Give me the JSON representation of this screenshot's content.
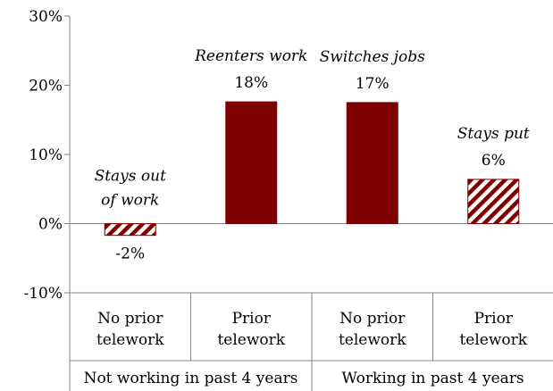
{
  "chart_data": {
    "type": "bar",
    "ylim": [
      -10,
      30
    ],
    "yticks": [
      "30%",
      "20%",
      "10%",
      "0%",
      "-10%"
    ],
    "ytick_values": [
      30,
      20,
      10,
      0,
      -10
    ],
    "categories": [
      "No prior telework",
      "Prior telework",
      "No prior telework",
      "Prior telework"
    ],
    "category_lines": [
      [
        "No prior",
        "telework"
      ],
      [
        "Prior",
        "telework"
      ],
      [
        "No prior",
        "telework"
      ],
      [
        "Prior",
        "telework"
      ]
    ],
    "groups": [
      "Not working in past 4 years",
      "Working in past 4 years"
    ],
    "values": [
      -1.7,
      17.6,
      17.5,
      6.4
    ],
    "value_labels": [
      "-2%",
      "18%",
      "17%",
      "6%"
    ],
    "annotations": [
      [
        "Stays out",
        "of work"
      ],
      [
        "Reenters work"
      ],
      [
        "Switches jobs"
      ],
      [
        "Stays put"
      ]
    ],
    "fills": [
      "hatched",
      "solid",
      "solid",
      "hatched"
    ],
    "colors": {
      "bar": "#7f0000",
      "axis": "#868686"
    }
  }
}
